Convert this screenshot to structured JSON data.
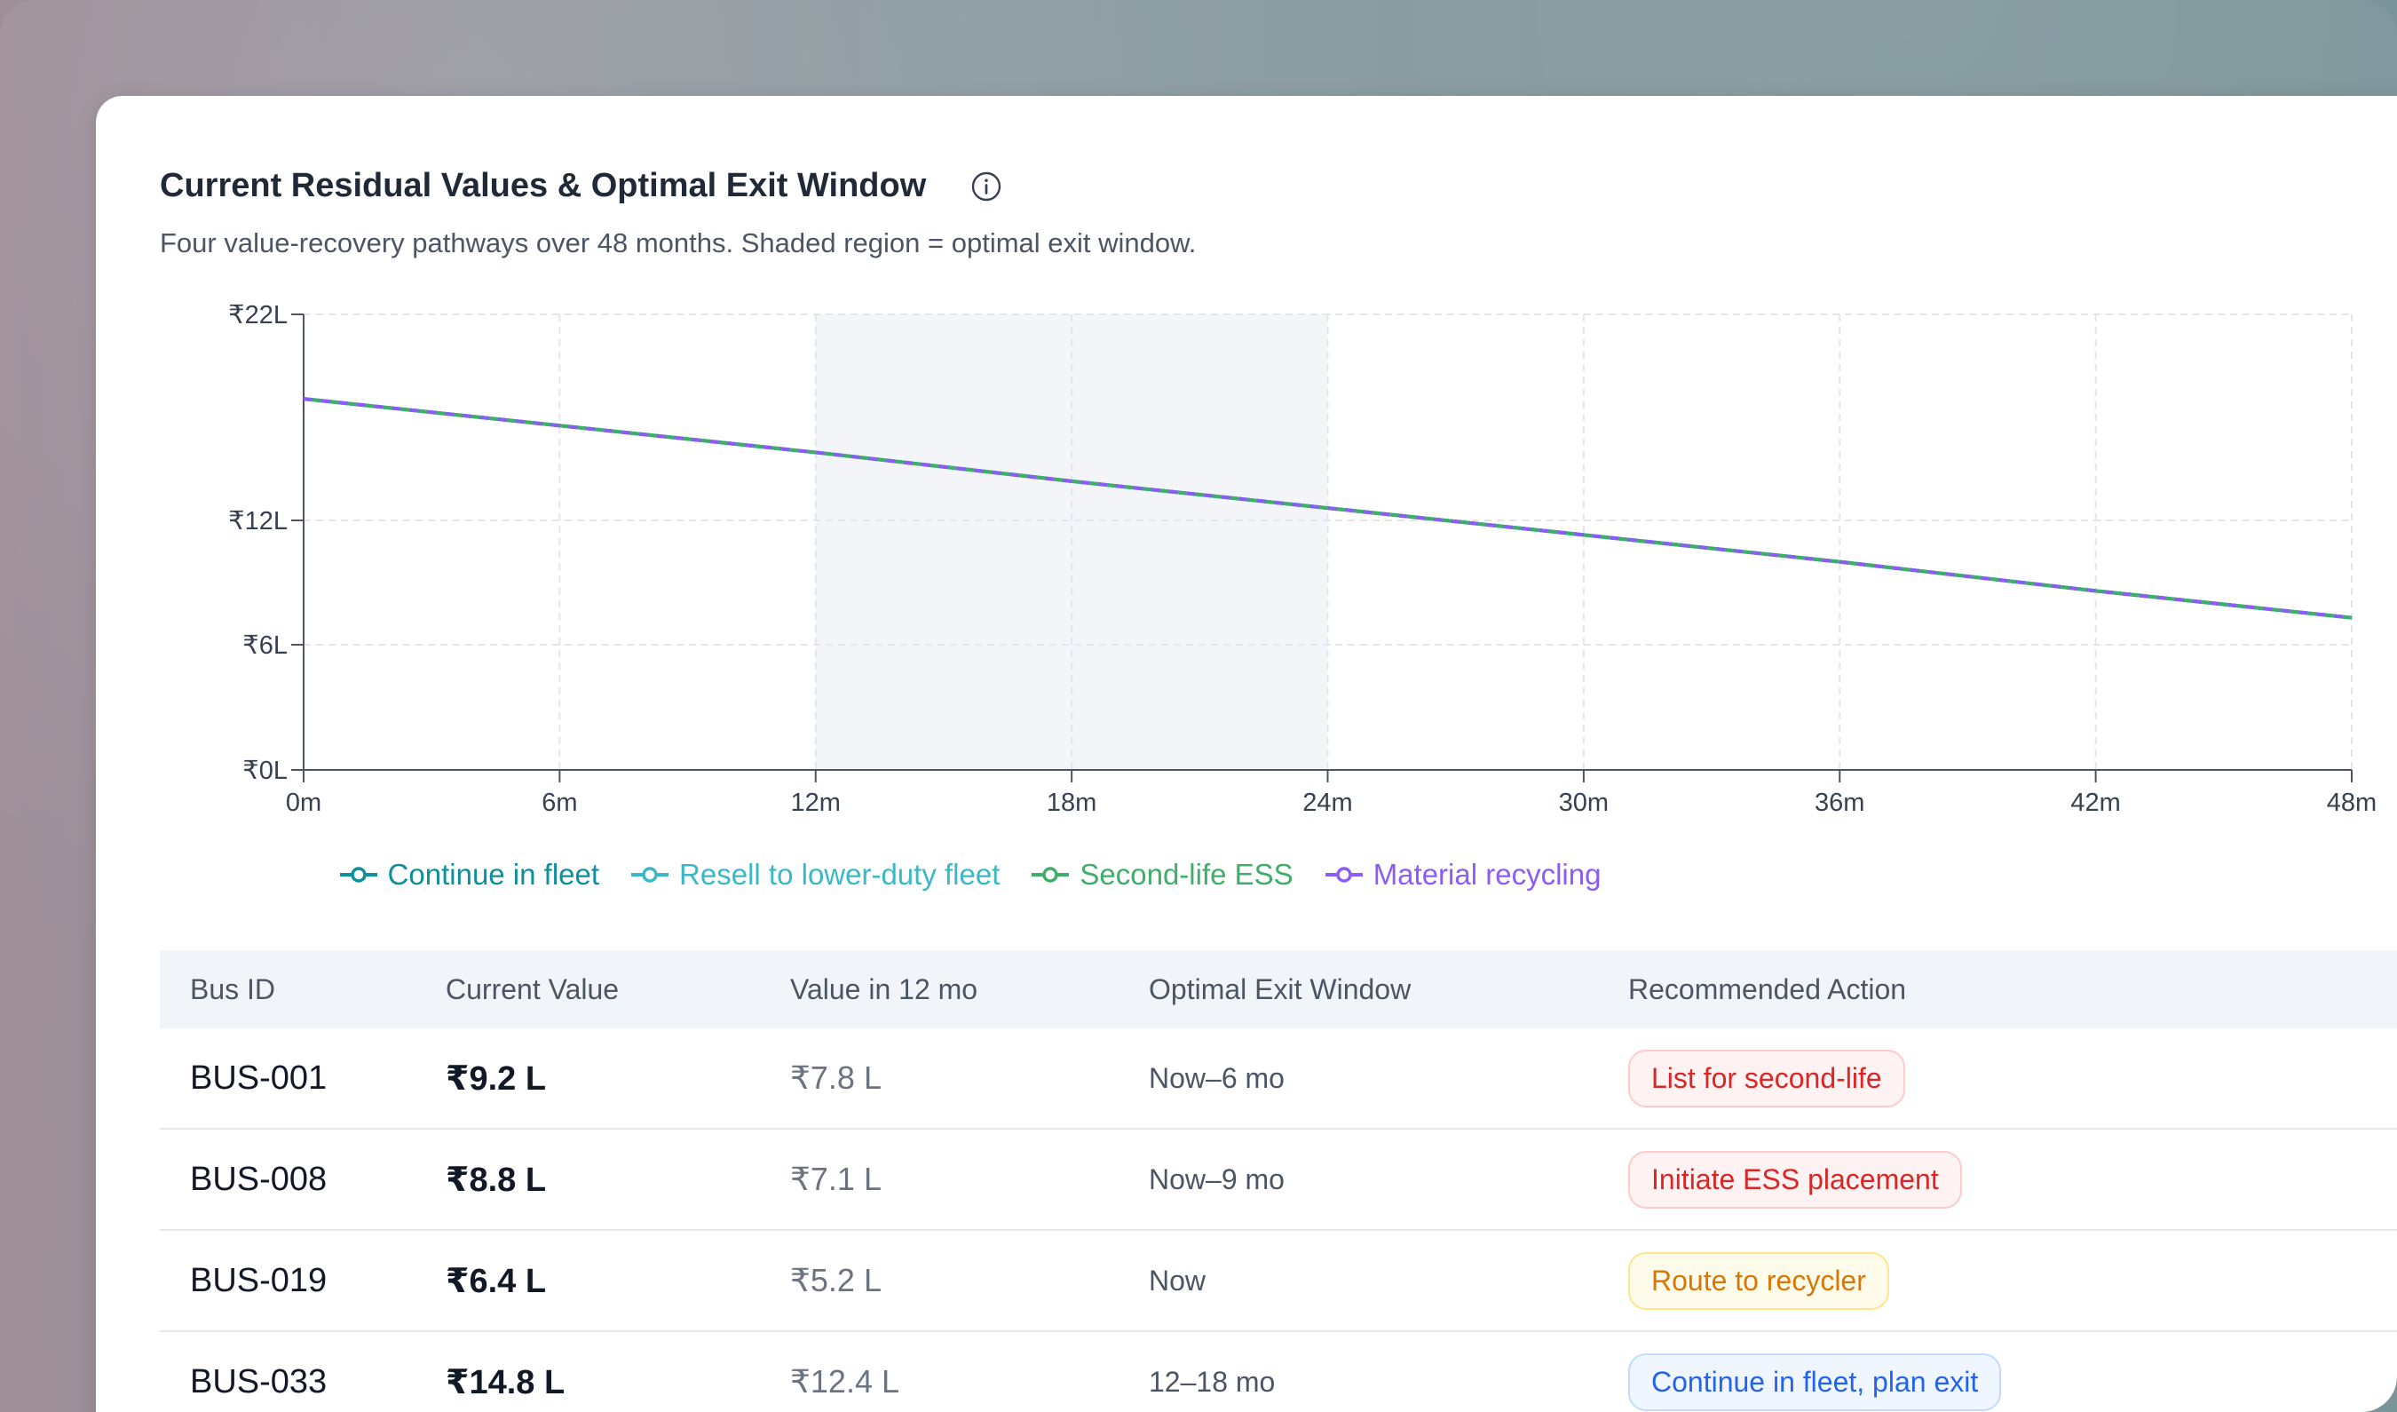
{
  "header": {
    "title": "Current Residual Values & Optimal Exit Window",
    "subtitle": "Four value-recovery pathways over 48 months. Shaded region = optimal exit window."
  },
  "chart_data": {
    "type": "line",
    "x": [
      0,
      6,
      12,
      18,
      24,
      30,
      36,
      42,
      48
    ],
    "x_tick_labels": [
      "0m",
      "6m",
      "12m",
      "18m",
      "24m",
      "30m",
      "36m",
      "42m",
      "48m"
    ],
    "y_ticks": [
      0,
      6,
      12,
      22
    ],
    "y_tick_labels": [
      "₹0L",
      "₹6L",
      "₹12L",
      "₹22L"
    ],
    "ylim": [
      0,
      22
    ],
    "xlim": [
      0,
      48
    ],
    "grid": true,
    "legend_placement": "bottom",
    "shaded_region": [
      12,
      24
    ],
    "series": [
      {
        "name": "Continue in fleet",
        "color": "#0e8f9c",
        "values": [
          17.9,
          16.6,
          15.3,
          13.9,
          12.6,
          11.3,
          10.0,
          8.6,
          7.3
        ]
      },
      {
        "name": "Resell to lower-duty fleet",
        "color": "#3ab8c6",
        "values": [
          17.9,
          16.6,
          15.3,
          13.9,
          12.6,
          11.3,
          10.0,
          8.6,
          7.3
        ]
      },
      {
        "name": "Second-life ESS",
        "color": "#3fae6a",
        "values": [
          17.9,
          16.6,
          15.3,
          13.9,
          12.6,
          11.3,
          10.0,
          8.6,
          7.3
        ]
      },
      {
        "name": "Material recycling",
        "color": "#8b5cf6",
        "values": [
          17.9,
          16.6,
          15.3,
          13.9,
          12.6,
          11.3,
          10.0,
          8.6,
          7.3
        ]
      }
    ]
  },
  "table": {
    "headers": [
      "Bus ID",
      "Current Value",
      "Value in 12 mo",
      "Optimal Exit Window",
      "Recommended Action"
    ],
    "rows": [
      {
        "bus_id": "BUS-001",
        "current": "₹9.2 L",
        "in12": "₹7.8 L",
        "window": "Now–6 mo",
        "action": "List for second-life",
        "action_color": "red"
      },
      {
        "bus_id": "BUS-008",
        "current": "₹8.8 L",
        "in12": "₹7.1 L",
        "window": "Now–9 mo",
        "action": "Initiate ESS placement",
        "action_color": "red"
      },
      {
        "bus_id": "BUS-019",
        "current": "₹6.4 L",
        "in12": "₹5.2 L",
        "window": "Now",
        "action": "Route to recycler",
        "action_color": "amber"
      },
      {
        "bus_id": "BUS-033",
        "current": "₹14.8 L",
        "in12": "₹12.4 L",
        "window": "12–18 mo",
        "action": "Continue in fleet, plan exit",
        "action_color": "blue"
      }
    ]
  }
}
